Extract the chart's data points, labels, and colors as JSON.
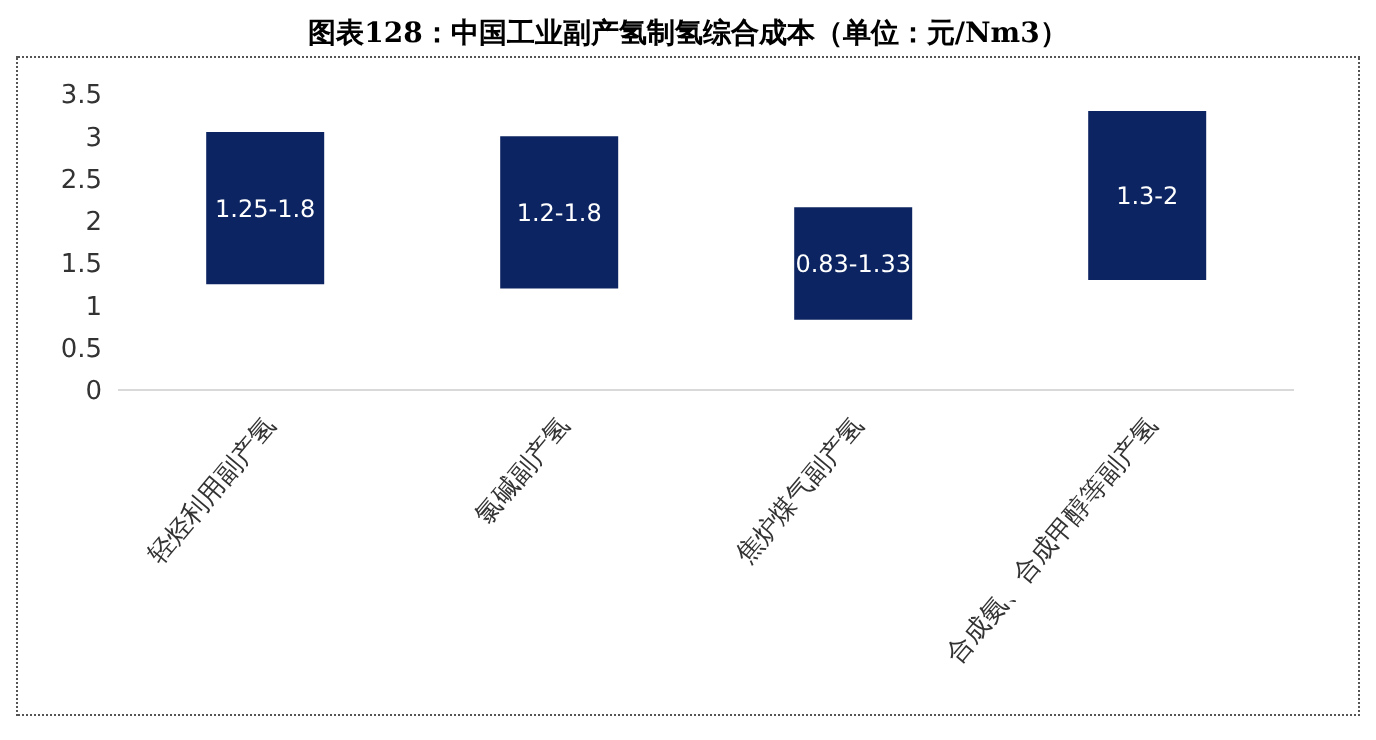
{
  "chart_data": {
    "type": "bar",
    "title": "图表128：中国工业副产氢制氢综合成本（单位：元/Nm3）",
    "categories": [
      "轻烃利用副产氢",
      "氯碱副产氢",
      "焦炉煤气副产氢",
      "合成氨、合成甲醇等副产氢"
    ],
    "base": [
      1.25,
      1.2,
      0.83,
      1.3
    ],
    "values": [
      1.8,
      1.8,
      1.33,
      2
    ],
    "value_labels": [
      "1.25-1.8",
      "1.2-1.8",
      "0.83-1.33",
      "1.3-2"
    ],
    "color": "#0c2461",
    "ylim": [
      0,
      3.5
    ],
    "yticks": [
      0,
      0.5,
      1,
      1.5,
      2,
      2.5,
      3,
      3.5
    ],
    "grid": false,
    "legend": false
  }
}
